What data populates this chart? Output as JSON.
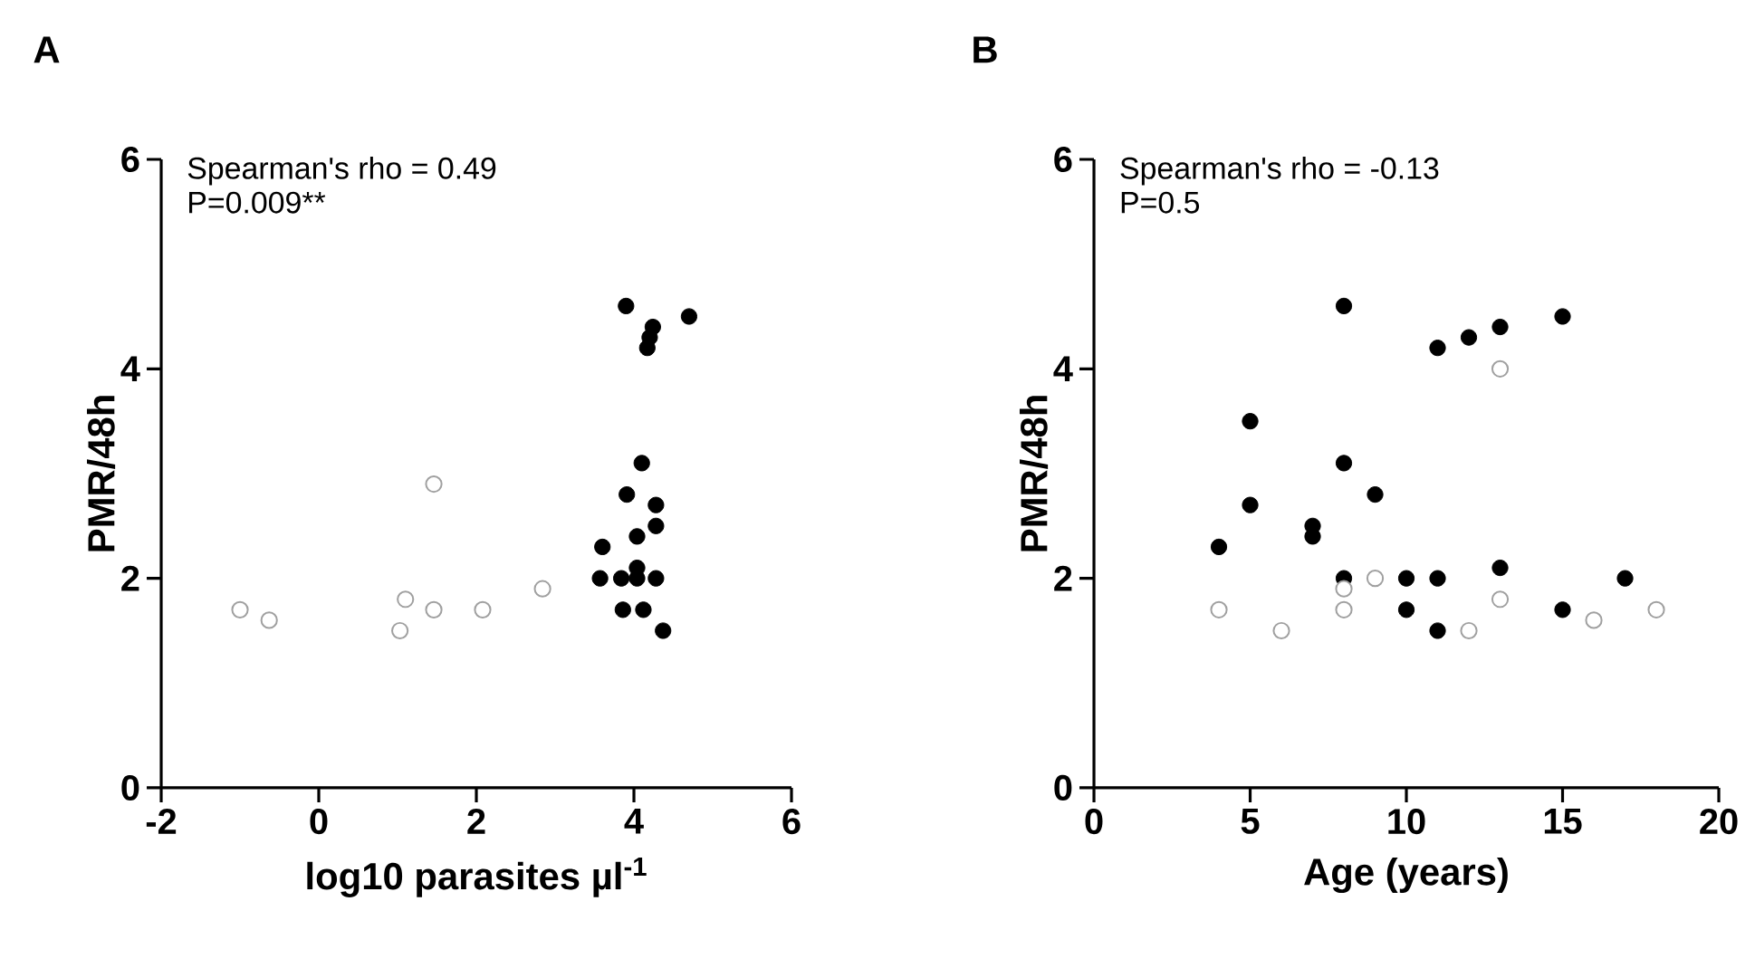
{
  "chart_data": [
    {
      "type": "scatter",
      "title": "A",
      "xlabel": "log10 parasites µl$^{-1}$",
      "ylabel": "PMR/48h",
      "annotations": [
        "Spearman's rho = 0.49",
        "P=0.009**"
      ],
      "xlim": [
        -2,
        6
      ],
      "ylim": [
        0,
        6
      ],
      "xticks": [
        -2,
        0,
        2,
        4,
        6
      ],
      "yticks": [
        0,
        2,
        4,
        6
      ],
      "marker": "circle",
      "series": [
        {
          "color": "#000000",
          "x": [
            3.9,
            4.7,
            4.24,
            4.2,
            4.17,
            4.1,
            3.91,
            4.28,
            4.28,
            4.04,
            3.6,
            3.57,
            3.84,
            4.04,
            4.28,
            4.04,
            3.86,
            4.12,
            4.37
          ],
          "values": [
            4.6,
            4.5,
            4.4,
            4.3,
            4.2,
            3.1,
            2.8,
            2.7,
            2.5,
            2.4,
            2.3,
            2.0,
            2.0,
            2.0,
            2.0,
            2.1,
            1.7,
            1.7,
            1.5
          ]
        },
        {
          "color": "#a0a0a0",
          "x": [
            -1.0,
            -0.63,
            1.46,
            1.1,
            1.03,
            1.46,
            2.08,
            2.84
          ],
          "values": [
            1.7,
            1.6,
            2.9,
            1.8,
            1.5,
            1.7,
            1.7,
            1.9
          ]
        }
      ]
    },
    {
      "type": "scatter",
      "title": "B",
      "xlabel": "Age (years)",
      "ylabel": "PMR/48h",
      "annotations": [
        "Spearman's rho = -0.13",
        "P=0.5"
      ],
      "xlim": [
        0,
        20
      ],
      "ylim": [
        0,
        6
      ],
      "xticks": [
        0,
        5,
        10,
        15,
        20
      ],
      "yticks": [
        0,
        2,
        4,
        6
      ],
      "marker": "circle",
      "series": [
        {
          "color": "#000000",
          "x": [
            4,
            5,
            5,
            7,
            7,
            8,
            8,
            8,
            9,
            10,
            10,
            11,
            11,
            11,
            12,
            13,
            13,
            15,
            15,
            17
          ],
          "values": [
            2.3,
            3.5,
            2.7,
            2.5,
            2.4,
            4.6,
            3.1,
            2.0,
            2.8,
            2.0,
            1.7,
            4.2,
            2.0,
            1.5,
            4.3,
            4.4,
            2.1,
            4.5,
            1.7,
            2.0
          ]
        },
        {
          "color": "#a0a0a0",
          "x": [
            4,
            6,
            8,
            8,
            9,
            12,
            13,
            13,
            16,
            18
          ],
          "values": [
            1.7,
            1.5,
            1.9,
            1.7,
            2.0,
            1.5,
            4.0,
            1.8,
            1.6,
            1.7
          ]
        }
      ]
    }
  ]
}
